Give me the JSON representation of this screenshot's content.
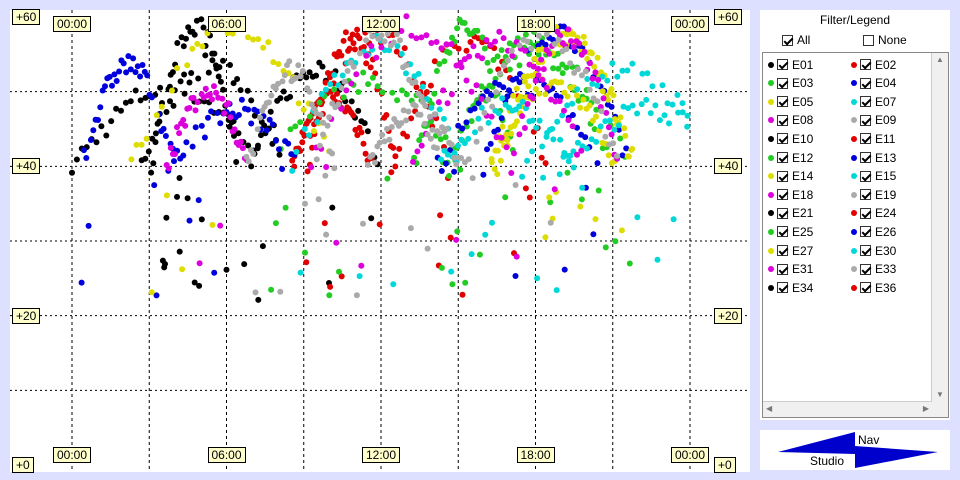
{
  "chart_data": {
    "type": "scatter",
    "x_ticks": [
      "00:00",
      "06:00",
      "12:00",
      "18:00",
      "00:00"
    ],
    "y_ticks": [
      "+60",
      "+40",
      "+20",
      "+0"
    ],
    "ylim": [
      0,
      60
    ],
    "grid": true,
    "legend_placement": "right panel"
  },
  "panel": {
    "title": "Filter/Legend",
    "all_label": "All",
    "none_label": "None",
    "items": [
      {
        "label": "E01",
        "color": "#000000"
      },
      {
        "label": "E02",
        "color": "#e00000"
      },
      {
        "label": "E03",
        "color": "#22cc22"
      },
      {
        "label": "E04",
        "color": "#0000dd"
      },
      {
        "label": "E05",
        "color": "#dddd00"
      },
      {
        "label": "E07",
        "color": "#00d8d8"
      },
      {
        "label": "E08",
        "color": "#dd00dd"
      },
      {
        "label": "E09",
        "color": "#aaaaaa"
      },
      {
        "label": "E10",
        "color": "#000000"
      },
      {
        "label": "E11",
        "color": "#e00000"
      },
      {
        "label": "E12",
        "color": "#22cc22"
      },
      {
        "label": "E13",
        "color": "#0000dd"
      },
      {
        "label": "E14",
        "color": "#dddd00"
      },
      {
        "label": "E15",
        "color": "#00d8d8"
      },
      {
        "label": "E18",
        "color": "#dd00dd"
      },
      {
        "label": "E19",
        "color": "#aaaaaa"
      },
      {
        "label": "E21",
        "color": "#000000"
      },
      {
        "label": "E24",
        "color": "#e00000"
      },
      {
        "label": "E25",
        "color": "#22cc22"
      },
      {
        "label": "E26",
        "color": "#0000dd"
      },
      {
        "label": "E27",
        "color": "#dddd00"
      },
      {
        "label": "E30",
        "color": "#00d8d8"
      },
      {
        "label": "E31",
        "color": "#dd00dd"
      },
      {
        "label": "E33",
        "color": "#aaaaaa"
      },
      {
        "label": "E34",
        "color": "#000000"
      },
      {
        "label": "E36",
        "color": "#e00000"
      }
    ]
  },
  "logo": {
    "top_text": "Nav",
    "bottom_text": "Studio",
    "color": "#0000cc"
  }
}
